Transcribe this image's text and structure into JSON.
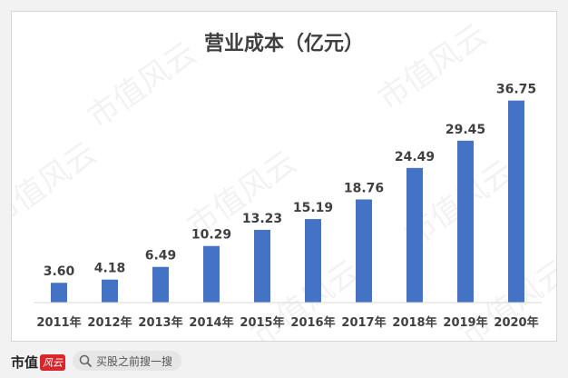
{
  "chart_data": {
    "type": "bar",
    "title": "营业成本（亿元）",
    "categories": [
      "2011年",
      "2012年",
      "2013年",
      "2014年",
      "2015年",
      "2016年",
      "2017年",
      "2018年",
      "2019年",
      "2020年"
    ],
    "values": [
      3.6,
      4.18,
      6.49,
      10.29,
      13.23,
      15.19,
      18.76,
      24.49,
      29.45,
      36.75
    ],
    "value_labels": [
      "3.60",
      "4.18",
      "6.49",
      "10.29",
      "13.23",
      "15.19",
      "18.76",
      "24.49",
      "29.45",
      "36.75"
    ],
    "ylim": [
      0,
      40
    ],
    "grid": false,
    "colors": {
      "bar": "#4472c4"
    }
  },
  "footer": {
    "brand": "市值",
    "brand_logo": "风云",
    "search_text": "买股之前搜一搜",
    "search_icon": "search-icon"
  },
  "watermark": "市值风云"
}
